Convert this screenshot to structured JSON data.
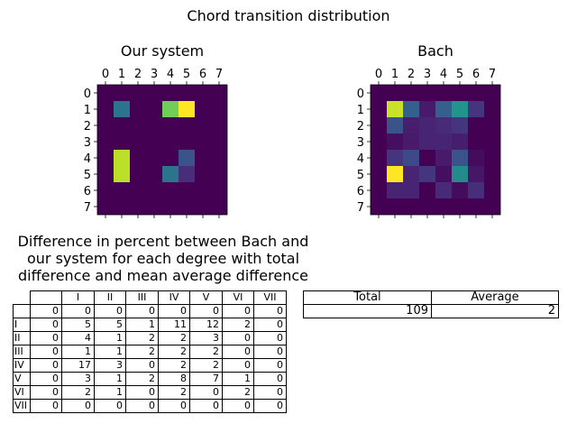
{
  "suptitle": "Chord transition distribution",
  "chart_data": [
    {
      "type": "heatmap",
      "title": "Our system",
      "x_ticks": [
        0,
        1,
        2,
        3,
        4,
        5,
        6,
        7
      ],
      "y_ticks": [
        0,
        1,
        2,
        3,
        4,
        5,
        6,
        7
      ],
      "colormap": "viridis",
      "values": [
        [
          0,
          0,
          0,
          0,
          0,
          0,
          0,
          0
        ],
        [
          0,
          0.38,
          0,
          0,
          0.78,
          1.0,
          0,
          0
        ],
        [
          0,
          0,
          0,
          0,
          0,
          0,
          0,
          0
        ],
        [
          0,
          0,
          0,
          0,
          0,
          0,
          0,
          0
        ],
        [
          0,
          0.9,
          0,
          0,
          0,
          0.26,
          0,
          0
        ],
        [
          0,
          0.9,
          0,
          0,
          0.38,
          0.13,
          0,
          0
        ],
        [
          0,
          0,
          0,
          0,
          0,
          0,
          0,
          0
        ],
        [
          0,
          0,
          0,
          0,
          0,
          0,
          0,
          0
        ]
      ]
    },
    {
      "type": "heatmap",
      "title": "Bach",
      "x_ticks": [
        0,
        1,
        2,
        3,
        4,
        5,
        6,
        7
      ],
      "y_ticks": [
        0,
        1,
        2,
        3,
        4,
        5,
        6,
        7
      ],
      "colormap": "viridis",
      "values": [
        [
          0,
          0,
          0,
          0,
          0,
          0,
          0,
          0
        ],
        [
          0,
          0.92,
          0.3,
          0.07,
          0.3,
          0.52,
          0.15,
          0
        ],
        [
          0,
          0.26,
          0.08,
          0.1,
          0.12,
          0.15,
          0,
          0
        ],
        [
          0,
          0.04,
          0.07,
          0.1,
          0.1,
          0.08,
          0,
          0
        ],
        [
          0,
          0.15,
          0.22,
          0,
          0.07,
          0.26,
          0.03,
          0
        ],
        [
          0,
          1.0,
          0.1,
          0.15,
          0.04,
          0.48,
          0.06,
          0
        ],
        [
          0,
          0.1,
          0.1,
          0,
          0.12,
          0.03,
          0.13,
          0
        ],
        [
          0,
          0,
          0,
          0,
          0,
          0,
          0,
          0
        ]
      ]
    },
    {
      "type": "table",
      "title": "Difference in percent between Bach and\nour system for each degree with total\ndifference and mean average difference",
      "columns": [
        "",
        "I",
        "II",
        "III",
        "IV",
        "V",
        "VI",
        "VII"
      ],
      "rows": [
        {
          "label": "",
          "cells": [
            "0",
            "0",
            "0",
            "0",
            "0",
            "0",
            "0",
            "0"
          ]
        },
        {
          "label": "I",
          "cells": [
            "0",
            "5",
            "5",
            "1",
            "11",
            "12",
            "2",
            "0"
          ]
        },
        {
          "label": "II",
          "cells": [
            "0",
            "4",
            "1",
            "2",
            "2",
            "3",
            "0",
            "0"
          ]
        },
        {
          "label": "III",
          "cells": [
            "0",
            "1",
            "1",
            "2",
            "2",
            "2",
            "0",
            "0"
          ]
        },
        {
          "label": "IV",
          "cells": [
            "0",
            "17",
            "3",
            "0",
            "2",
            "2",
            "0",
            "0"
          ]
        },
        {
          "label": "V",
          "cells": [
            "0",
            "3",
            "1",
            "2",
            "8",
            "7",
            "1",
            "0"
          ]
        },
        {
          "label": "VI",
          "cells": [
            "0",
            "2",
            "1",
            "0",
            "2",
            "0",
            "2",
            "0"
          ]
        },
        {
          "label": "VII",
          "cells": [
            "0",
            "0",
            "0",
            "0",
            "0",
            "0",
            "0",
            "0"
          ]
        }
      ]
    },
    {
      "type": "table",
      "columns": [
        "Total",
        "Average"
      ],
      "rows": [
        [
          "109",
          "2"
        ]
      ]
    }
  ]
}
